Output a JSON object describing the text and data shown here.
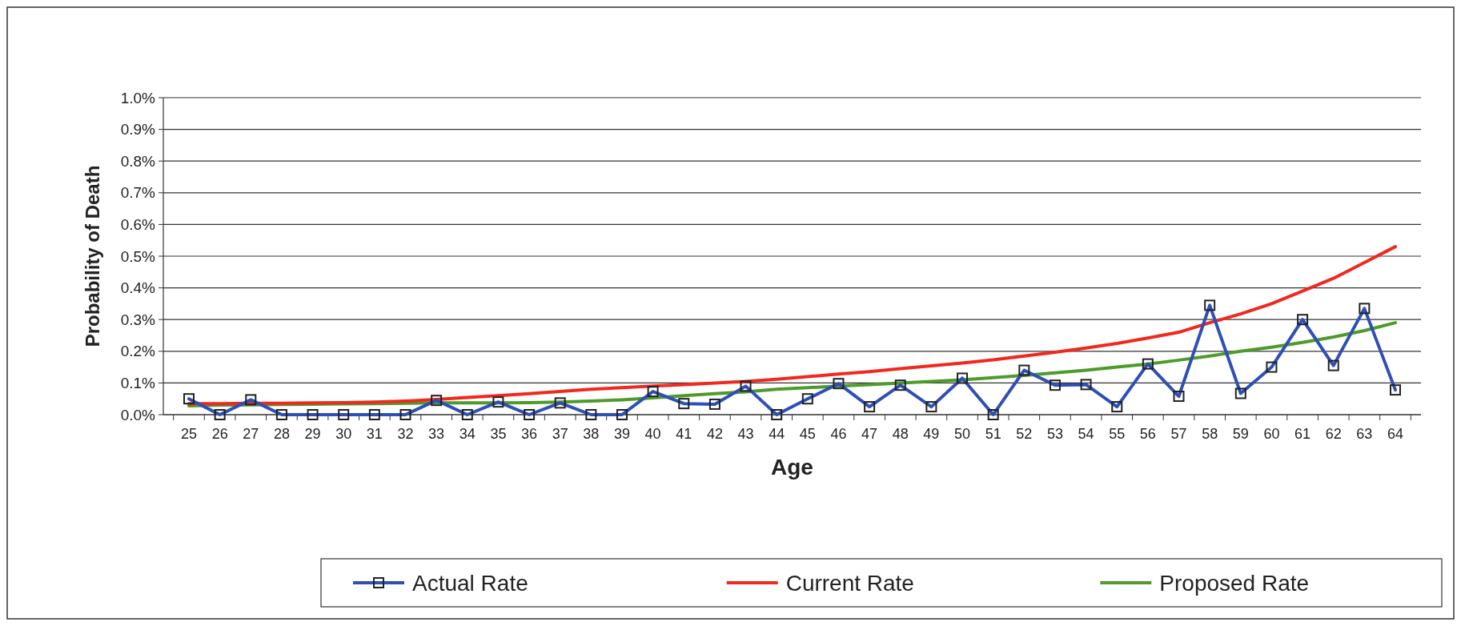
{
  "chart_data": {
    "type": "line",
    "xlabel": "Age",
    "ylabel": "Probability of Death",
    "categories": [
      "25",
      "26",
      "27",
      "28",
      "29",
      "30",
      "31",
      "32",
      "33",
      "34",
      "35",
      "36",
      "37",
      "38",
      "39",
      "40",
      "41",
      "42",
      "43",
      "44",
      "45",
      "46",
      "47",
      "48",
      "49",
      "50",
      "51",
      "52",
      "53",
      "54",
      "55",
      "56",
      "57",
      "58",
      "59",
      "60",
      "61",
      "62",
      "63",
      "64"
    ],
    "series": [
      {
        "name": "Actual Rate",
        "color": "#2e4fb5",
        "marker": "square",
        "values": [
          0.05,
          0,
          0.047,
          0,
          0,
          0,
          0,
          0,
          0.045,
          0,
          0.04,
          0,
          0.037,
          0,
          0,
          0.073,
          0.035,
          0.033,
          0.09,
          0,
          0.05,
          0.098,
          0.025,
          0.093,
          0.025,
          0.115,
          0,
          0.14,
          0.093,
          0.095,
          0.025,
          0.16,
          0.058,
          0.345,
          0.067,
          0.15,
          0.3,
          0.155,
          0.335,
          0.078
        ]
      },
      {
        "name": "Current Rate",
        "color": "#f0281e",
        "marker": "none",
        "values": [
          0.035,
          0.035,
          0.036,
          0.036,
          0.037,
          0.038,
          0.04,
          0.043,
          0.048,
          0.054,
          0.06,
          0.066,
          0.073,
          0.08,
          0.085,
          0.09,
          0.095,
          0.1,
          0.105,
          0.112,
          0.12,
          0.128,
          0.136,
          0.145,
          0.154,
          0.163,
          0.173,
          0.185,
          0.197,
          0.21,
          0.225,
          0.242,
          0.26,
          0.29,
          0.318,
          0.35,
          0.39,
          0.43,
          0.48,
          0.53
        ]
      },
      {
        "name": "Proposed Rate",
        "color": "#4e9a2a",
        "marker": "none",
        "values": [
          0.028,
          0.03,
          0.031,
          0.032,
          0.033,
          0.034,
          0.035,
          0.036,
          0.037,
          0.037,
          0.037,
          0.038,
          0.04,
          0.043,
          0.047,
          0.053,
          0.06,
          0.066,
          0.072,
          0.08,
          0.085,
          0.09,
          0.095,
          0.1,
          0.105,
          0.11,
          0.117,
          0.124,
          0.132,
          0.14,
          0.15,
          0.16,
          0.172,
          0.185,
          0.2,
          0.213,
          0.228,
          0.245,
          0.265,
          0.29
        ]
      }
    ],
    "ylim": [
      0,
      1
    ],
    "yticks": [
      {
        "value": 0,
        "label": "0.0%"
      },
      {
        "value": 0.1,
        "label": "0.1%"
      },
      {
        "value": 0.2,
        "label": "0.2%"
      },
      {
        "value": 0.3,
        "label": "0.3%"
      },
      {
        "value": 0.4,
        "label": "0.4%"
      },
      {
        "value": 0.5,
        "label": "0.5%"
      },
      {
        "value": 0.6,
        "label": "0.6%"
      },
      {
        "value": 0.7,
        "label": "0.7%"
      },
      {
        "value": 0.8,
        "label": "0.8%"
      },
      {
        "value": 0.9,
        "label": "0.9%"
      },
      {
        "value": 1,
        "label": "1.0%"
      }
    ],
    "grid": "y",
    "legend": "bottom",
    "line_style": "solid"
  }
}
